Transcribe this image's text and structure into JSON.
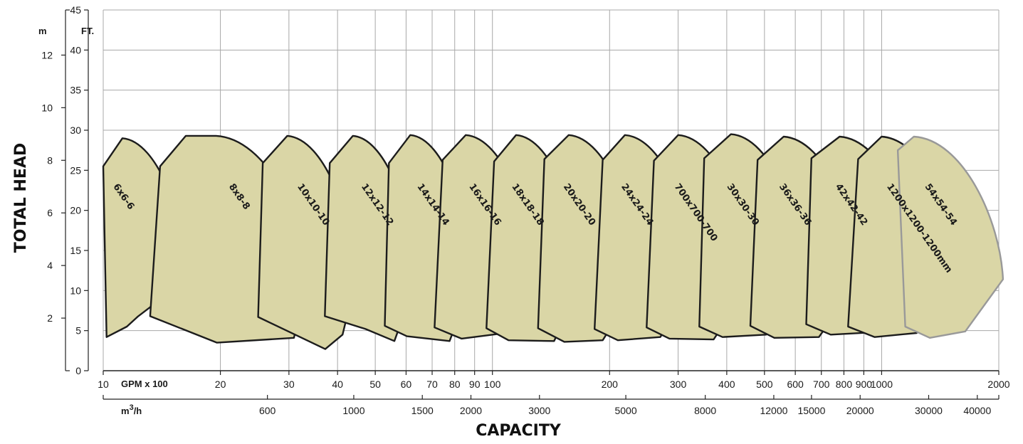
{
  "chart_data": {
    "type": "area",
    "title": "",
    "xlabel": "CAPACITY",
    "ylabel": "TOTAL HEAD",
    "x_scale": "log",
    "xlim_gpm_hundreds": [
      10,
      2000
    ],
    "ylim_ft": [
      0,
      45
    ],
    "grid": true,
    "y_axis_ft": {
      "unit": "FT.",
      "ticks": [
        0,
        5,
        10,
        15,
        20,
        25,
        30,
        35,
        40,
        45
      ]
    },
    "y_axis_m": {
      "unit": "m",
      "ticks": [
        2,
        4,
        6,
        8,
        10,
        12
      ]
    },
    "x_axis_gpm": {
      "unit": "GPM x 100",
      "ticks": [
        10,
        20,
        30,
        40,
        50,
        60,
        70,
        80,
        90,
        100,
        200,
        300,
        400,
        500,
        600,
        700,
        800,
        900,
        1000,
        2000
      ],
      "tick_labels": [
        "10",
        "20",
        "30",
        "40",
        "50",
        "60",
        "70",
        "80",
        "90",
        "100",
        "200",
        "300",
        "400",
        "500",
        "600",
        "700",
        "800",
        "900",
        "1000",
        "2000"
      ]
    },
    "x_axis_m3h": {
      "unit": "m3/h",
      "ticks": [
        600,
        1000,
        1500,
        2000,
        3000,
        5000,
        8000,
        12000,
        15000,
        20000,
        30000,
        40000
      ],
      "tick_labels": [
        "600",
        "1000",
        "1500",
        "2000",
        "3000",
        "5000",
        "8000",
        "12000",
        "15000",
        "20000",
        "30000",
        "40000"
      ]
    },
    "series": [
      {
        "name": "6x6-6",
        "top": [
          [
            10,
            25.5
          ],
          [
            11.2,
            29
          ]
        ],
        "right": [
          [
            16.5,
            11.5
          ]
        ],
        "bottom": [
          [
            10.2,
            4.2
          ],
          [
            11.5,
            5.5
          ],
          [
            12.3,
            6.8
          ]
        ],
        "label_at": [
          10.6,
          23
        ]
      },
      {
        "name": "8x8-8",
        "top": [
          [
            14,
            25.5
          ],
          [
            16.3,
            29.3
          ],
          [
            19.5,
            29.3
          ]
        ],
        "right": [
          [
            33.5,
            11.5
          ]
        ],
        "bottom": [
          [
            13.2,
            6.8
          ],
          [
            19.6,
            3.5
          ],
          [
            30.9,
            4.1
          ]
        ],
        "label_at": [
          21,
          23
        ]
      },
      {
        "name": "10x10-10",
        "top": [
          [
            25.7,
            25.9
          ],
          [
            29.7,
            29.3
          ]
        ],
        "right": [
          [
            44.6,
            11.4
          ]
        ],
        "bottom": [
          [
            25,
            6.7
          ],
          [
            37.2,
            2.7
          ],
          [
            41.2,
            4.5
          ]
        ],
        "label_at": [
          31.5,
          23
        ]
      },
      {
        "name": "12x12-12",
        "top": [
          [
            38.2,
            25.9
          ],
          [
            43.8,
            29.3
          ]
        ],
        "right": [
          [
            63.8,
            11.4
          ]
        ],
        "bottom": [
          [
            37.1,
            6.8
          ],
          [
            47.2,
            5.2
          ],
          [
            56,
            3.7
          ]
        ],
        "label_at": [
          46,
          23
        ]
      },
      {
        "name": "14x14-14",
        "top": [
          [
            54.2,
            25.9
          ],
          [
            61.5,
            29.4
          ]
        ],
        "right": [
          [
            89.2,
            11.4
          ]
        ],
        "bottom": [
          [
            52.9,
            5.6
          ],
          [
            60.3,
            4.3
          ],
          [
            77.6,
            3.7
          ]
        ],
        "label_at": [
          64,
          23
        ]
      },
      {
        "name": "16x16-16",
        "top": [
          [
            74.5,
            26.3
          ],
          [
            85.4,
            29.4
          ]
        ],
        "right": [
          [
            129,
            11.2
          ]
        ],
        "bottom": [
          [
            71,
            5.4
          ],
          [
            83.3,
            4
          ],
          [
            104,
            4.6
          ]
        ],
        "label_at": [
          87,
          23
        ]
      },
      {
        "name": "18x18-18",
        "top": [
          [
            101,
            26.1
          ],
          [
            115,
            29.4
          ]
        ],
        "right": [
          [
            171,
            11.2
          ]
        ],
        "bottom": [
          [
            96.5,
            5.3
          ],
          [
            110,
            3.8
          ],
          [
            144,
            3.7
          ]
        ],
        "label_at": [
          112,
          23
        ]
      },
      {
        "name": "20x20-20",
        "top": [
          [
            136,
            26.4
          ],
          [
            157,
            29.4
          ]
        ],
        "right": [
          [
            239,
            11.2
          ]
        ],
        "bottom": [
          [
            131,
            5.3
          ],
          [
            153,
            3.6
          ],
          [
            192,
            3.8
          ]
        ],
        "label_at": [
          152,
          23
        ]
      },
      {
        "name": "24x24-24",
        "top": [
          [
            192,
            26.3
          ],
          [
            219,
            29.4
          ]
        ],
        "right": [
          [
            335,
            11.2
          ]
        ],
        "bottom": [
          [
            183,
            5.2
          ],
          [
            210,
            3.8
          ],
          [
            270,
            4.2
          ]
        ],
        "label_at": [
          214,
          23
        ]
      },
      {
        "name": "700x700-700",
        "top": [
          [
            260,
            26.2
          ],
          [
            300,
            29.4
          ]
        ],
        "right": [
          [
            465,
            11.2
          ]
        ],
        "bottom": [
          [
            249,
            5.4
          ],
          [
            285,
            4
          ],
          [
            370,
            3.9
          ]
        ],
        "label_at": [
          293,
          23
        ]
      },
      {
        "name": "30x30-30",
        "top": [
          [
            350,
            26.5
          ],
          [
            410,
            29.5
          ]
        ],
        "right": [
          [
            635,
            11.4
          ]
        ],
        "bottom": [
          [
            340,
            5.5
          ],
          [
            390,
            4.2
          ],
          [
            505,
            4.5
          ]
        ],
        "label_at": [
          400,
          23
        ]
      },
      {
        "name": "36x36-36",
        "top": [
          [
            480,
            26.3
          ],
          [
            560,
            29.2
          ]
        ],
        "right": [
          [
            880,
            11.4
          ]
        ],
        "bottom": [
          [
            460,
            5.6
          ],
          [
            530,
            4.1
          ],
          [
            690,
            4.2
          ]
        ],
        "label_at": [
          545,
          23
        ]
      },
      {
        "name": "42x42-42",
        "top": [
          [
            660,
            26.5
          ],
          [
            780,
            29.2
          ]
        ],
        "right": [
          [
            1250,
            11.4
          ]
        ],
        "bottom": [
          [
            640,
            5.8
          ],
          [
            740,
            4.5
          ],
          [
            960,
            4.8
          ]
        ],
        "label_at": [
          760,
          23
        ]
      },
      {
        "name": "1200x1200-1200mm",
        "top": [
          [
            870,
            26.4
          ],
          [
            1000,
            29.2
          ]
        ],
        "right": [
          [
            1600,
            11.4
          ]
        ],
        "bottom": [
          [
            820,
            5.5
          ],
          [
            960,
            4.2
          ],
          [
            1230,
            4.7
          ]
        ],
        "label_at": [
          1030,
          23
        ]
      },
      {
        "name": "54x54-54",
        "top": [
          [
            1100,
            27.5
          ],
          [
            1210,
            29.2
          ]
        ],
        "right": [
          [
            2050,
            11.4
          ]
        ],
        "bottom": [
          [
            1150,
            5.5
          ],
          [
            1330,
            4.1
          ],
          [
            1640,
            4.9
          ]
        ],
        "label_at": [
          1290,
          23
        ]
      }
    ],
    "colors": {
      "fill": "#dad6a6",
      "stroke": "#1c1c1c",
      "last_stroke": "#999999",
      "grid": "#a8a8a8"
    }
  }
}
